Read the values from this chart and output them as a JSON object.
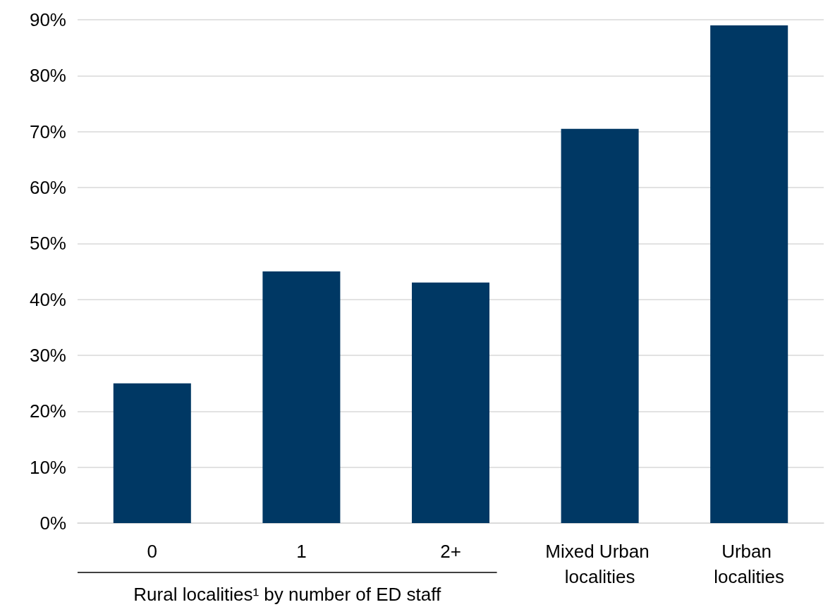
{
  "chart_data": {
    "type": "bar",
    "xlabel": "Rural localities¹ by number of ED staff",
    "categories": [
      "0",
      "1",
      "2+",
      "Mixed Urban localities",
      "Urban localities"
    ],
    "values": [
      25,
      45,
      43,
      70.5,
      89
    ],
    "color": "#003864",
    "ylim": [
      0,
      90
    ],
    "yticks": [
      {
        "value": 0,
        "label": "0%"
      },
      {
        "value": 10,
        "label": "10%"
      },
      {
        "value": 20,
        "label": "20%"
      },
      {
        "value": 30,
        "label": "30%"
      },
      {
        "value": 40,
        "label": "40%"
      },
      {
        "value": 50,
        "label": "50%"
      },
      {
        "value": 60,
        "label": "60%"
      },
      {
        "value": 70,
        "label": "70%"
      },
      {
        "value": 80,
        "label": "80%"
      },
      {
        "value": 90,
        "label": "90%"
      }
    ],
    "grid": "y"
  }
}
